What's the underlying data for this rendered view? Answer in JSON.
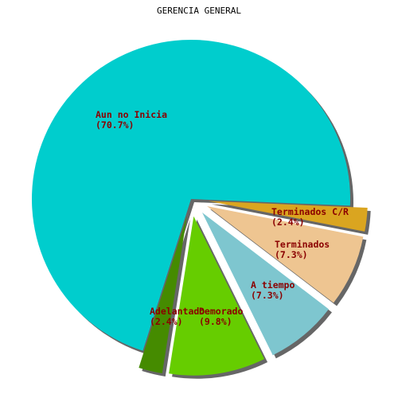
{
  "chart_data": {
    "type": "pie",
    "title": "GERENCIA GENERAL",
    "label_color": "#8b0000",
    "shadow_color": "#666666",
    "slices": [
      {
        "label": "Aun no Inicia",
        "value": 70.7,
        "percent_label": "(70.7%)",
        "color": "#00cdcd",
        "exploded": false
      },
      {
        "label": "Adelantado",
        "value": 2.4,
        "percent_label": "(2.4%)",
        "color": "#458b00",
        "exploded": true
      },
      {
        "label": "Demorado",
        "value": 9.8,
        "percent_label": "(9.8%)",
        "color": "#66cd00",
        "exploded": true
      },
      {
        "label": "A tiempo",
        "value": 7.3,
        "percent_label": "(7.3%)",
        "color": "#7ec6cf",
        "exploded": true
      },
      {
        "label": "Terminados",
        "value": 7.3,
        "percent_label": "(7.3%)",
        "color": "#eec591",
        "exploded": true
      },
      {
        "label": "Terminados C/R",
        "value": 2.4,
        "percent_label": "(2.4%)",
        "color": "#daa520",
        "exploded": true
      }
    ]
  }
}
